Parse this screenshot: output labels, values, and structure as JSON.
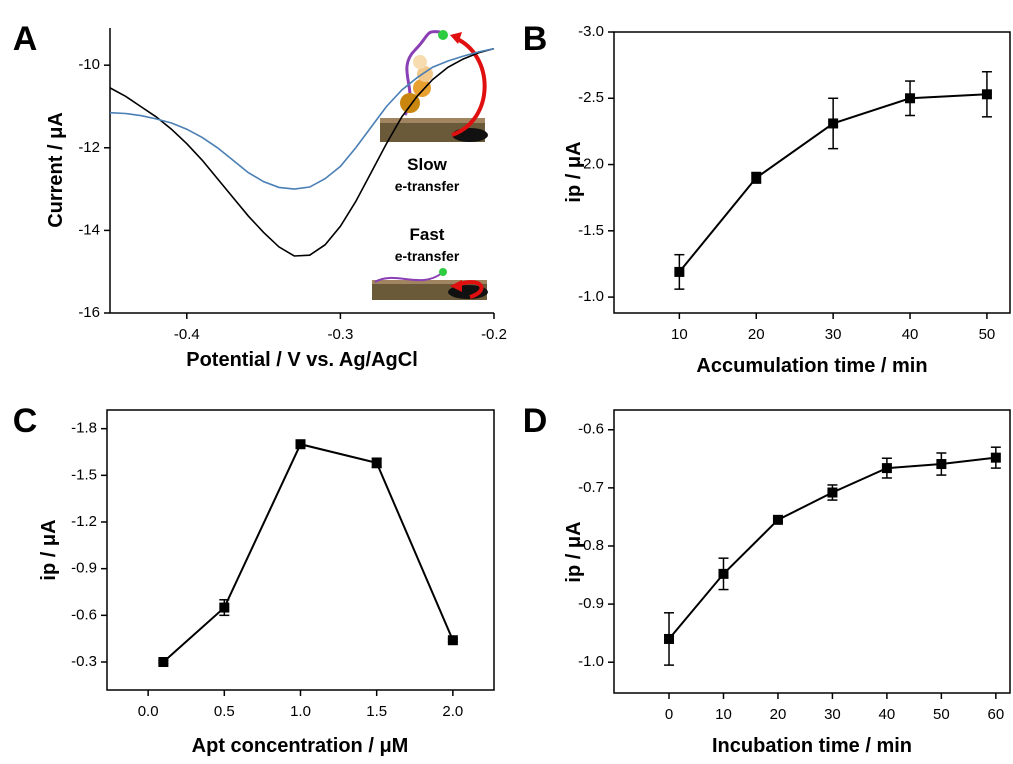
{
  "chart_data": [
    {
      "type": "line",
      "panel_label": "A",
      "x_label": "Potential / V vs. Ag/AgCl",
      "y_label": "Current / μA",
      "annotations": [
        "Slow",
        "e-transfer",
        "Fast",
        "e-transfer"
      ],
      "x": [
        -0.45,
        -0.44,
        -0.43,
        -0.42,
        -0.41,
        -0.4,
        -0.39,
        -0.38,
        -0.37,
        -0.36,
        -0.35,
        -0.34,
        -0.33,
        -0.32,
        -0.31,
        -0.3,
        -0.29,
        -0.28,
        -0.27,
        -0.26,
        -0.25,
        -0.24,
        -0.23,
        -0.22,
        -0.21,
        -0.2
      ],
      "series": [
        {
          "color": "#000000",
          "values": [
            -10.55,
            -10.75,
            -11.0,
            -11.25,
            -11.55,
            -11.9,
            -12.3,
            -12.75,
            -13.2,
            -13.65,
            -14.05,
            -14.4,
            -14.62,
            -14.6,
            -14.35,
            -13.9,
            -13.3,
            -12.6,
            -11.9,
            -11.25,
            -10.75,
            -10.35,
            -10.05,
            -9.85,
            -9.7,
            -9.6
          ]
        },
        {
          "color": "#4a7fb5",
          "values": [
            -11.15,
            -11.17,
            -11.22,
            -11.3,
            -11.4,
            -11.55,
            -11.75,
            -12.0,
            -12.3,
            -12.6,
            -12.82,
            -12.96,
            -13.0,
            -12.95,
            -12.75,
            -12.45,
            -12.0,
            -11.5,
            -11.0,
            -10.6,
            -10.3,
            -10.05,
            -9.9,
            -9.78,
            -9.68,
            -9.6
          ]
        }
      ],
      "xlim": [
        -0.45,
        -0.2
      ],
      "xticks": [
        -0.4,
        -0.3,
        -0.2
      ],
      "ylim": [
        -16,
        -9.1
      ],
      "yticks": [
        -10,
        -12,
        -14,
        -16
      ],
      "box": false
    },
    {
      "type": "line",
      "panel_label": "B",
      "x_label": "Accumulation time / min",
      "y_label": "ip / μA",
      "color": "#000000",
      "x": [
        10,
        20,
        30,
        40,
        50
      ],
      "values": [
        -1.19,
        -1.9,
        -2.31,
        -2.5,
        -2.53
      ],
      "errors": [
        0.13,
        0.04,
        0.19,
        0.13,
        0.17
      ],
      "xlim": [
        1.5,
        53
      ],
      "xticks": [
        10,
        20,
        30,
        40,
        50
      ],
      "ylim": [
        -0.88,
        -3.0
      ],
      "yticks": [
        {
          "value": -1,
          "label": "-1.0"
        },
        -1.5,
        {
          "value": -2,
          "label": "-2.0"
        },
        -2.5,
        {
          "value": -3,
          "label": "-3.0"
        }
      ],
      "box": true
    },
    {
      "type": "line",
      "panel_label": "C",
      "x_label": "Apt concentration / μM",
      "y_label": "ip / μA",
      "color": "#000000",
      "x": [
        0.1,
        0.5,
        1.0,
        1.5,
        2.0
      ],
      "values": [
        -0.3,
        -0.65,
        -1.7,
        -1.58,
        -0.44
      ],
      "errors": [
        0.01,
        0.05,
        0.02,
        0.03,
        0.01
      ],
      "xlim": [
        -0.27,
        2.27
      ],
      "xticks": [
        {
          "value": 0,
          "label": "0.0"
        },
        0.5,
        {
          "value": 1,
          "label": "1.0"
        },
        1.5,
        {
          "value": 2,
          "label": "2.0"
        }
      ],
      "ylim": [
        -0.12,
        -1.92
      ],
      "yticks": [
        -0.3,
        -0.6,
        -0.9,
        -1.2,
        -1.5,
        -1.8
      ],
      "box": true
    },
    {
      "type": "line",
      "panel_label": "D",
      "x_label": "Incubation time / min",
      "y_label": "ip / μA",
      "color": "#000000",
      "x": [
        0,
        10,
        20,
        30,
        40,
        50,
        60
      ],
      "values": [
        -0.96,
        -0.848,
        -0.755,
        -0.708,
        -0.666,
        -0.659,
        -0.648
      ],
      "errors": [
        0.045,
        0.027,
        0.003,
        0.013,
        0.017,
        0.019,
        0.018
      ],
      "xlim": [
        -10.1,
        62.6
      ],
      "xticks": [
        0,
        10,
        20,
        30,
        40,
        50,
        60
      ],
      "ylim": [
        -1.053,
        -0.566
      ],
      "yticks": [
        -0.6,
        -0.7,
        -0.8,
        -0.9,
        {
          "value": -1,
          "label": "-1.0"
        }
      ],
      "box": true
    }
  ]
}
